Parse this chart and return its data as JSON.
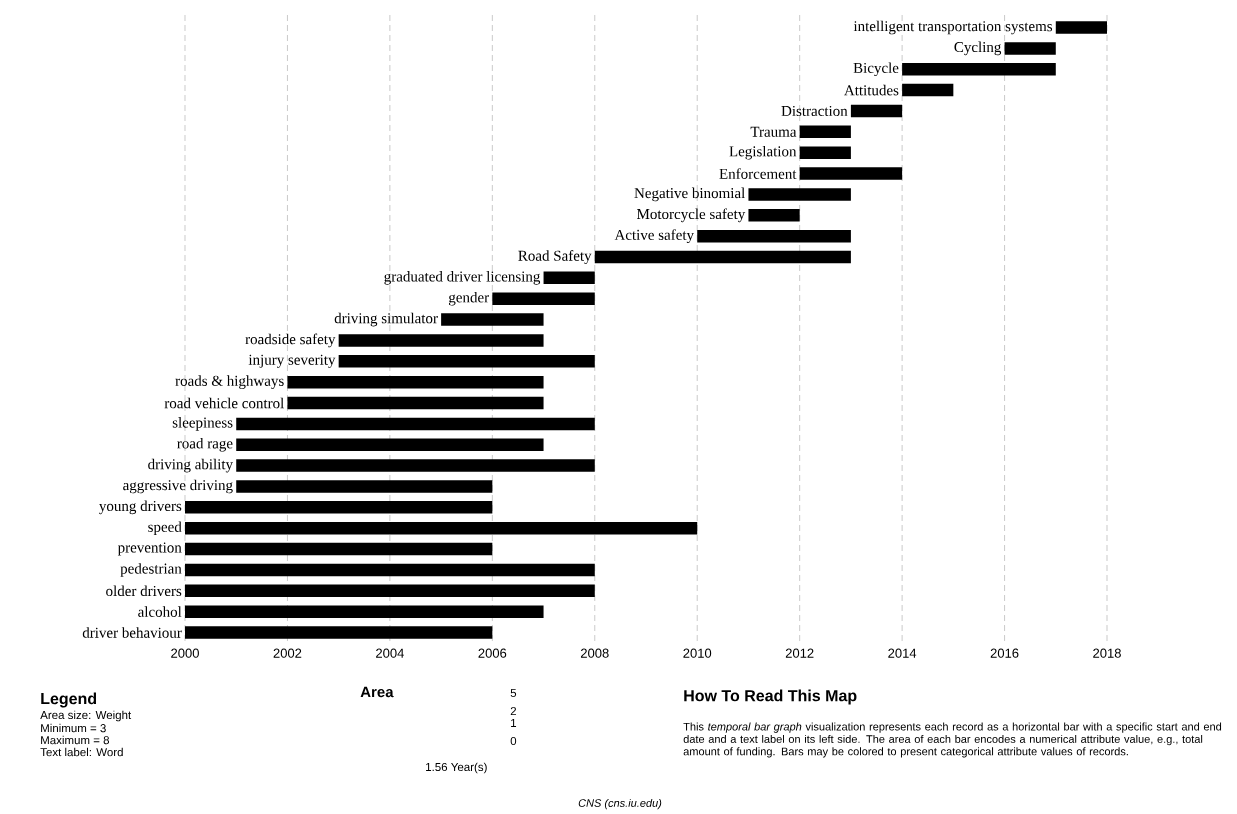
{
  "chart_data": {
    "type": "bar",
    "orientation": "horizontal",
    "color": "#000000",
    "categories": [
      "intelligent transportation systems",
      "Cycling",
      "Bicycle",
      "Attitudes",
      "Distraction",
      "Trauma",
      "Legislation",
      "Enforcement",
      "Negative binomial",
      "Motorcycle safety",
      "Active safety",
      "Road Safety",
      "graduated driver licensing",
      "gender",
      "driving simulator",
      "roadside safety",
      "injury severity",
      "roads & highways",
      "road vehicle control",
      "sleepiness",
      "road rage",
      "driving ability",
      "aggressive driving",
      "young drivers",
      "speed",
      "prevention",
      "pedestrian",
      "older drivers",
      "alcohol",
      "driver behaviour"
    ],
    "base": [
      2017,
      2016,
      2014,
      2014,
      2013,
      2012,
      2012,
      2012,
      2011,
      2011,
      2010,
      2008,
      2007,
      2006,
      2005,
      2003,
      2003,
      2002,
      2002,
      2001,
      2001,
      2001,
      2001,
      2000,
      2000,
      2000,
      2000,
      2000,
      2000,
      2000
    ],
    "values": [
      1,
      1,
      3,
      1,
      1,
      1,
      1,
      2,
      2,
      1,
      3,
      5,
      1,
      2,
      2,
      4,
      5,
      5,
      5,
      7,
      6,
      7,
      5,
      6,
      10,
      6,
      8,
      8,
      7,
      6
    ],
    "xlim": [
      2000,
      2018
    ],
    "xticks": [
      2000,
      2002,
      2004,
      2006,
      2008,
      2010,
      2012,
      2014,
      2016,
      2018
    ],
    "grid": "x",
    "tick_labels": "x",
    "annotations": [
      "Legend",
      "Area size: Weight",
      "Minimum = 3",
      "Maximum = 8",
      "Text label: Word",
      "Area",
      "5",
      "2",
      "1",
      "0",
      "1.56 Year(s)",
      "How To Read This Map",
      "This *temporal bar graph* visualization represents each record as a horizontal bar with a specific start and end date and a text label on its left side. The area of each bar encodes a numerical attribute value, e.g., total amount of funding. Bars may be colored to present categorical attribute values of records.",
      "CNS (cns.iu.edu)"
    ]
  }
}
